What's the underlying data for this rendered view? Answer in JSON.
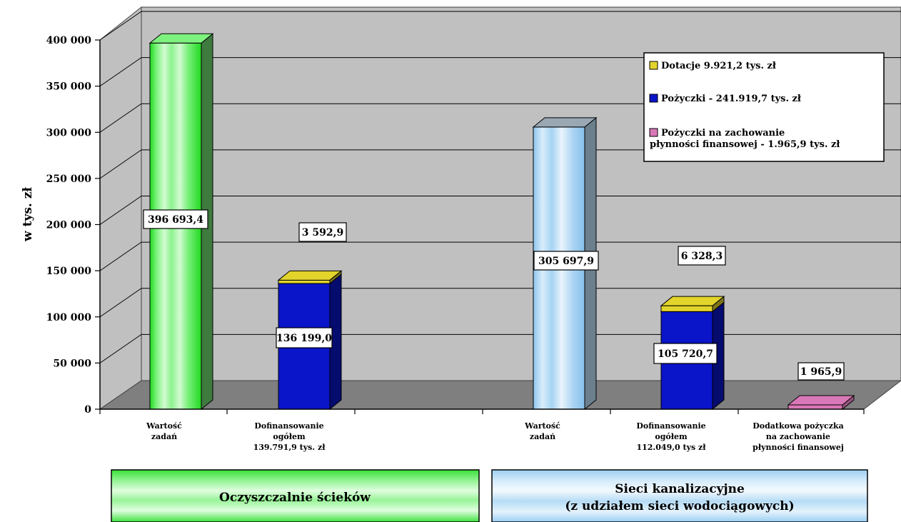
{
  "chart_data": {
    "type": "bar",
    "title": "",
    "ylabel": "w tys. zł",
    "ylim": [
      0,
      400000
    ],
    "yticks": [
      "0",
      "50 000",
      "100 000",
      "150 000",
      "200 000",
      "250 000",
      "300 000",
      "350 000",
      "400 000"
    ],
    "groups": [
      {
        "name": "Oczyszczalnie ścieków",
        "categories": [
          {
            "label": [
              "Wartość",
              "zadań"
            ],
            "segments": [
              {
                "series": "Wartość zadań",
                "value": 396693.4,
                "label": "396 693,4"
              }
            ]
          },
          {
            "label": [
              "Dofinansowanie",
              "ogółem",
              "139.791,9 tys. zł"
            ],
            "segments": [
              {
                "series": "Pożyczki",
                "value": 136199.0,
                "label": "136 199,0"
              },
              {
                "series": "Dotacje",
                "value": 3592.9,
                "label": "3 592,9"
              }
            ]
          }
        ]
      },
      {
        "name": [
          "Sieci kanalizacyjne",
          "(z udziałem sieci wodociągowych)"
        ],
        "categories": [
          {
            "label": [
              "Wartość",
              "zadań"
            ],
            "segments": [
              {
                "series": "Wartość zadań",
                "value": 305697.9,
                "label": "305 697,9"
              }
            ]
          },
          {
            "label": [
              "Dofinansowanie",
              "ogółem",
              "112.049,0 tys zł"
            ],
            "segments": [
              {
                "series": "Pożyczki",
                "value": 105720.7,
                "label": "105 720,7"
              },
              {
                "series": "Dotacje",
                "value": 6328.3,
                "label": "6 328,3"
              }
            ]
          },
          {
            "label": [
              "Dodatkowa pożyczka",
              "na zachowanie",
              "płynności finansowej"
            ],
            "segments": [
              {
                "series": "Pożyczki na zachowanie płynności finansowej",
                "value": 1965.9,
                "label": "1 965,9"
              }
            ]
          }
        ]
      }
    ],
    "legend": {
      "position": "top-right",
      "entries": [
        {
          "label": [
            "Dotacje 9.921,2 tys. zł"
          ],
          "color": "#e2d42a"
        },
        {
          "label": [
            "Pożyczki - 241.919,7 tys. zł"
          ],
          "color": "#0a14c8"
        },
        {
          "label": [
            "Pożyczki na zachowanie",
            "płynności finansowej  - 1.965,9 tys. zł"
          ],
          "color": "#d978b6"
        }
      ]
    },
    "colors": {
      "green_bar": "#33e633",
      "lightblue_bar": "#b8dcf6",
      "blue": "#0a14c8",
      "yellow": "#e2d42a",
      "pink": "#d978b6",
      "wall": "#c0c0c0",
      "floor": "#7f7f7f"
    },
    "grid": true
  }
}
